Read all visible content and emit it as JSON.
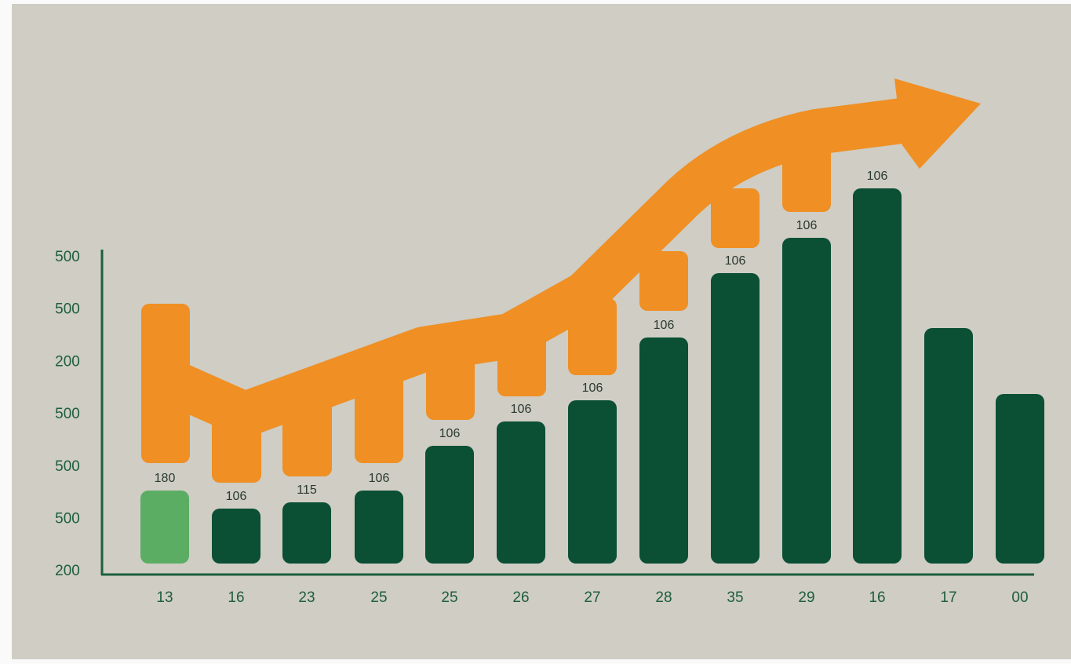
{
  "y_axis_labels": [
    "500",
    "500",
    "200",
    "500",
    "500",
    "500",
    "200"
  ],
  "x_axis_labels": [
    "13",
    "16",
    "23",
    "25",
    "25",
    "26",
    "27",
    "28",
    "35",
    "29",
    "16",
    "17",
    "00"
  ],
  "bar_labels": [
    "180",
    "106",
    "115",
    "106",
    "106",
    "106",
    "106",
    "106",
    "106",
    "106",
    "106",
    null,
    null
  ]
}
